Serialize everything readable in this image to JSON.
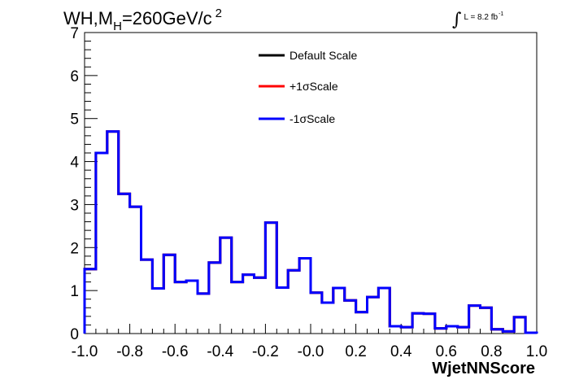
{
  "chart_data": {
    "type": "line",
    "step": true,
    "title_parts": {
      "base": "WH,M",
      "sub": "H",
      "value": "=260GeV/c",
      "sup": "2"
    },
    "luminosity": {
      "integral": "∫",
      "text": "L = 8.2 fb",
      "sup": "-1"
    },
    "xlabel": "WjetNNScore",
    "ylabel": "",
    "xlim": [
      -1.0,
      1.0
    ],
    "ylim": [
      0,
      7
    ],
    "x_tick_labels": [
      "-1.0",
      "-0.8",
      "-0.6",
      "-0.4",
      "-0.2",
      "-0.0",
      "0.2",
      "0.4",
      "0.6",
      "0.8",
      "1.0"
    ],
    "x_tick_values": [
      -1.0,
      -0.8,
      -0.6,
      -0.4,
      -0.2,
      0.0,
      0.2,
      0.4,
      0.6,
      0.8,
      1.0
    ],
    "y_tick_labels": [
      "0",
      "1",
      "2",
      "3",
      "4",
      "5",
      "6",
      "7"
    ],
    "y_tick_values": [
      0,
      1,
      2,
      3,
      4,
      5,
      6,
      7
    ],
    "bin_edges": [
      -1.0,
      -0.95,
      -0.9,
      -0.85,
      -0.8,
      -0.75,
      -0.7,
      -0.65,
      -0.6,
      -0.55,
      -0.5,
      -0.45,
      -0.4,
      -0.35,
      -0.3,
      -0.25,
      -0.2,
      -0.15,
      -0.1,
      -0.05,
      0.0,
      0.05,
      0.1,
      0.15,
      0.2,
      0.25,
      0.3,
      0.35,
      0.4,
      0.45,
      0.5,
      0.55,
      0.6,
      0.65,
      0.7,
      0.75,
      0.8,
      0.85,
      0.9,
      0.95,
      1.0
    ],
    "series": [
      {
        "name": "Default Scale",
        "color": "#000000",
        "values": [
          1.5,
          4.2,
          4.7,
          3.25,
          2.95,
          1.72,
          1.05,
          1.83,
          1.2,
          1.23,
          0.93,
          1.65,
          2.23,
          1.2,
          1.37,
          1.3,
          2.58,
          1.07,
          1.47,
          1.75,
          0.95,
          0.72,
          1.06,
          0.77,
          0.5,
          0.85,
          1.06,
          0.17,
          0.15,
          0.47,
          0.46,
          0.12,
          0.17,
          0.15,
          0.65,
          0.6,
          0.1,
          0.05,
          0.38,
          0.02
        ]
      },
      {
        "name": "+1σScale",
        "color": "#ff0000",
        "values": [
          1.5,
          4.2,
          4.7,
          3.25,
          2.95,
          1.72,
          1.05,
          1.83,
          1.2,
          1.23,
          0.93,
          1.65,
          2.23,
          1.2,
          1.37,
          1.3,
          2.58,
          1.07,
          1.47,
          1.75,
          0.95,
          0.72,
          1.06,
          0.77,
          0.5,
          0.85,
          1.06,
          0.17,
          0.15,
          0.47,
          0.46,
          0.12,
          0.17,
          0.15,
          0.65,
          0.6,
          0.1,
          0.05,
          0.38,
          0.02
        ]
      },
      {
        "name": "-1σScale",
        "color": "#0000ff",
        "values": [
          1.5,
          4.2,
          4.7,
          3.25,
          2.95,
          1.72,
          1.05,
          1.83,
          1.2,
          1.23,
          0.93,
          1.65,
          2.23,
          1.2,
          1.37,
          1.3,
          2.58,
          1.07,
          1.47,
          1.75,
          0.95,
          0.72,
          1.06,
          0.77,
          0.5,
          0.85,
          1.06,
          0.17,
          0.15,
          0.47,
          0.46,
          0.12,
          0.17,
          0.15,
          0.65,
          0.6,
          0.1,
          0.05,
          0.38,
          0.02
        ]
      }
    ],
    "legend_position": "top-center",
    "grid": false
  }
}
